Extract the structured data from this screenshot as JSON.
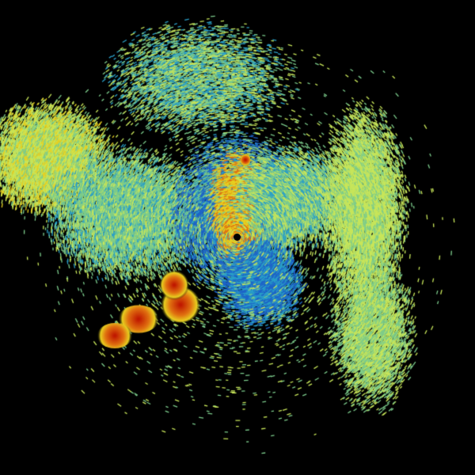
{
  "image": {
    "kind": "radar-reflectivity-scan",
    "background": "#000000",
    "palette": {
      "weak": "#1e64c8",
      "light": "#2aa0c8",
      "moderate": "#7ccc8c",
      "medium": "#c8e65a",
      "strong": "#e8d020",
      "heavy": "#e07010",
      "intense": "#c01800"
    },
    "radar_site_marker": "#000000"
  }
}
